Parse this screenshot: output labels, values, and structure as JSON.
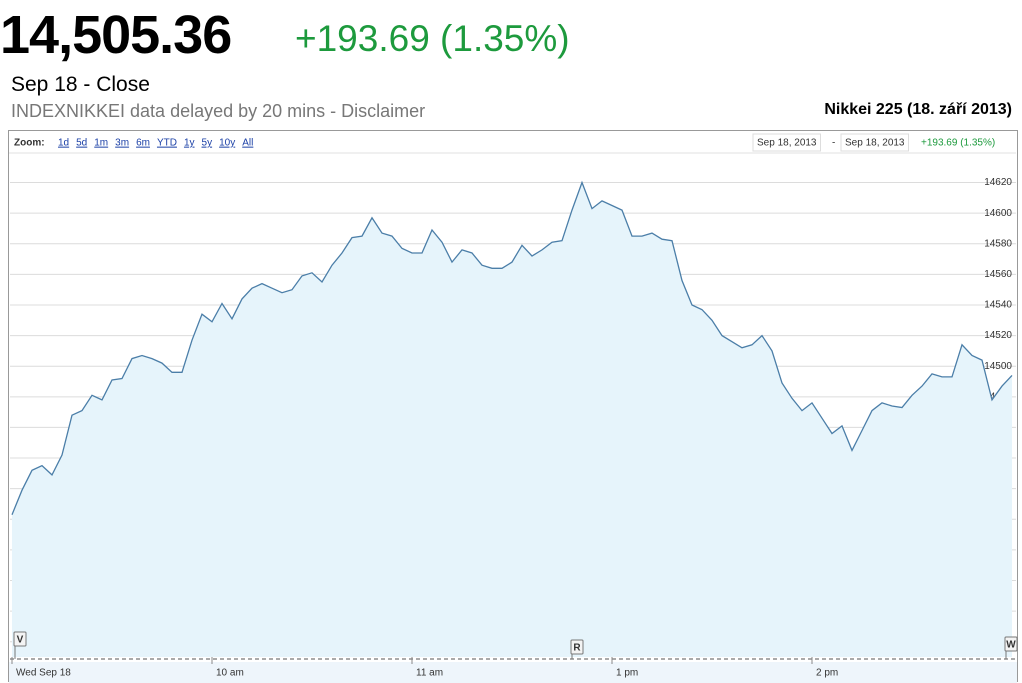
{
  "header": {
    "price": "14,505.36",
    "change": "+193.69 (1.35%)",
    "status": "Sep 18 - Close",
    "note": "INDEXNIKKEI data delayed by 20 mins - Disclaimer",
    "title": "Nikkei 225 (18. září 2013)"
  },
  "toolbar": {
    "zoom_label": "Zoom:",
    "zoom_options": [
      "1d",
      "5d",
      "1m",
      "3m",
      "6m",
      "YTD",
      "1y",
      "5y",
      "10y",
      "All"
    ],
    "range_start": "Sep 18, 2013",
    "range_separator": "-",
    "range_end": "Sep 18, 2013",
    "range_change": "+193.69 (1.35%)"
  },
  "chart_data": {
    "type": "area",
    "categories": [
      "Wed Sep 18",
      null,
      null,
      null,
      null,
      null,
      null,
      null,
      null,
      null,
      null,
      null,
      null,
      null,
      null,
      null,
      null,
      null,
      null,
      null,
      "10 am",
      null,
      null,
      null,
      null,
      null,
      null,
      null,
      null,
      null,
      null,
      null,
      null,
      null,
      null,
      null,
      null,
      null,
      null,
      null,
      "11 am",
      null,
      null,
      null,
      null,
      null,
      null,
      null,
      null,
      null,
      null,
      null,
      null,
      null,
      null,
      null,
      null,
      null,
      null,
      null,
      "1 pm",
      null,
      null,
      null,
      null,
      null,
      null,
      null,
      null,
      null,
      null,
      null,
      null,
      null,
      null,
      null,
      null,
      null,
      null,
      null,
      "2 pm",
      null,
      null,
      null,
      null,
      null,
      null,
      null,
      null,
      null,
      null,
      null,
      null,
      null,
      null,
      null,
      null,
      null,
      null,
      null,
      null
    ],
    "values": [
      14403,
      14419,
      14432,
      14435,
      14429,
      14442,
      14468,
      14471,
      14481,
      14478,
      14491,
      14492,
      14505,
      14507,
      14505,
      14502,
      14496,
      14496,
      14517,
      14534,
      14529,
      14541,
      14531,
      14544,
      14551,
      14554,
      14551,
      14548,
      14550,
      14559,
      14561,
      14555,
      14566,
      14574,
      14584,
      14585,
      14597,
      14587,
      14585,
      14577,
      14574,
      14574,
      14589,
      14581,
      14568,
      14576,
      14574,
      14566,
      14564,
      14564,
      14568,
      14579,
      14572,
      14576,
      14581,
      14582,
      14602,
      14620,
      14603,
      14608,
      14605,
      14602,
      14585,
      14585,
      14587,
      14583,
      14582,
      14556,
      14540,
      14537,
      14530,
      14520,
      14516,
      14512,
      14514,
      14520,
      14510,
      14489,
      14479,
      14471,
      14476,
      14466,
      14456,
      14461,
      14445,
      14458,
      14471,
      14476,
      14474,
      14473,
      14481,
      14487,
      14495,
      14493,
      14493,
      14514,
      14507,
      14504,
      14478,
      14487,
      14494
    ],
    "color": "#4b7ea8",
    "fill": "#e6f4fb",
    "ylim": [
      14310,
      14638
    ],
    "yticks": [
      14320,
      14340,
      14360,
      14380,
      14400,
      14420,
      14440,
      14460,
      14480,
      14500,
      14520,
      14540,
      14560,
      14580,
      14600,
      14620
    ],
    "grid": true,
    "flags": [
      "V",
      "R",
      "W"
    ]
  }
}
